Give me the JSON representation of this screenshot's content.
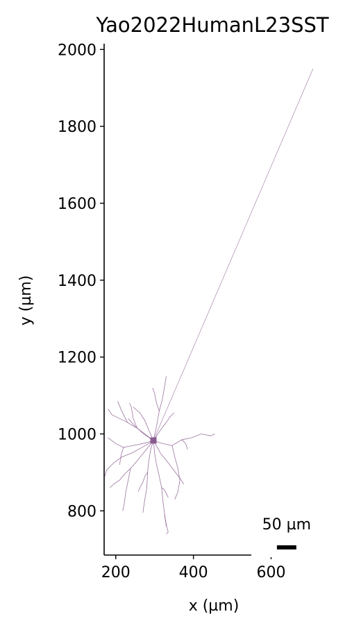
{
  "chart_data": {
    "type": "line",
    "title": "Yao2022HumanL23SST",
    "xlabel": "x (µm)",
    "ylabel": "y (µm)",
    "xlim": [
      170,
      735
    ],
    "ylim": [
      685,
      2015
    ],
    "xticks": [
      "200",
      "400",
      "600"
    ],
    "yticks": [
      "800",
      "1000",
      "1200",
      "1400",
      "1600",
      "1800",
      "2000"
    ],
    "grid": false,
    "color": "#8a5a8e",
    "soma": {
      "x": 297,
      "y": 983
    },
    "scale_bar": {
      "label": "50 µm",
      "length": 50,
      "x_start": 615,
      "y": 705
    },
    "series": [
      {
        "x": [
          297,
          708
        ],
        "y": [
          983,
          1950
        ]
      },
      {
        "x": [
          297,
          290,
          285,
          282,
          280,
          275,
          272,
          270
        ],
        "y": [
          983,
          960,
          930,
          900,
          860,
          830,
          810,
          795
        ]
      },
      {
        "x": [
          282,
          275,
          270,
          262,
          258
        ],
        "y": [
          900,
          890,
          875,
          860,
          850
        ]
      },
      {
        "x": [
          297,
          300,
          305,
          312,
          318,
          322,
          326,
          330
        ],
        "y": [
          983,
          950,
          920,
          890,
          860,
          820,
          790,
          760
        ]
      },
      {
        "x": [
          318,
          325,
          330,
          335
        ],
        "y": [
          860,
          855,
          845,
          835
        ]
      },
      {
        "x": [
          326,
          328,
          331,
          335,
          330
        ],
        "y": [
          790,
          775,
          760,
          745,
          740
        ]
      },
      {
        "x": [
          297,
          305,
          312,
          320,
          325,
          330
        ],
        "y": [
          983,
          1020,
          1060,
          1090,
          1120,
          1150
        ]
      },
      {
        "x": [
          312,
          305,
          300,
          295
        ],
        "y": [
          1060,
          1080,
          1105,
          1120
        ]
      },
      {
        "x": [
          297,
          320,
          345,
          370,
          395,
          420,
          445,
          455
        ],
        "y": [
          983,
          975,
          970,
          985,
          990,
          1000,
          995,
          1000
        ]
      },
      {
        "x": [
          370,
          380,
          385
        ],
        "y": [
          985,
          975,
          960
        ]
      },
      {
        "x": [
          345,
          352,
          360,
          365,
          360,
          352
        ],
        "y": [
          970,
          940,
          910,
          880,
          850,
          830
        ]
      },
      {
        "x": [
          297,
          315,
          335,
          350,
          365,
          375
        ],
        "y": [
          983,
          950,
          925,
          905,
          885,
          870
        ]
      },
      {
        "x": [
          297,
          275,
          255,
          230,
          215,
          205
        ],
        "y": [
          983,
          1000,
          1015,
          1030,
          1060,
          1085
        ]
      },
      {
        "x": [
          230,
          210,
          190,
          180
        ],
        "y": [
          1030,
          1040,
          1050,
          1065
        ]
      },
      {
        "x": [
          255,
          245,
          240,
          235
        ],
        "y": [
          1015,
          1040,
          1070,
          1080
        ]
      },
      {
        "x": [
          297,
          270,
          245,
          220,
          200,
          180
        ],
        "y": [
          983,
          975,
          970,
          965,
          975,
          990
        ]
      },
      {
        "x": [
          220,
          215,
          212,
          210
        ],
        "y": [
          965,
          950,
          935,
          920
        ]
      },
      {
        "x": [
          297,
          275,
          255,
          238,
          222,
          210,
          195,
          185
        ],
        "y": [
          983,
          955,
          930,
          910,
          895,
          880,
          870,
          860
        ]
      },
      {
        "x": [
          238,
          232,
          226,
          222,
          218
        ],
        "y": [
          910,
          880,
          850,
          820,
          800
        ]
      },
      {
        "x": [
          297,
          268,
          240,
          215,
          195,
          180
        ],
        "y": [
          983,
          965,
          950,
          940,
          925,
          910
        ]
      },
      {
        "x": [
          180,
          176,
          172
        ],
        "y": [
          910,
          905,
          890
        ]
      },
      {
        "x": [
          297,
          272,
          250,
          232
        ],
        "y": [
          983,
          1000,
          1020,
          1040
        ]
      },
      {
        "x": [
          297,
          315,
          330,
          340,
          350
        ],
        "y": [
          983,
          1010,
          1030,
          1045,
          1055
        ]
      },
      {
        "x": [
          297,
          285,
          275,
          262,
          245
        ],
        "y": [
          983,
          1010,
          1035,
          1055,
          1070
        ]
      }
    ]
  }
}
